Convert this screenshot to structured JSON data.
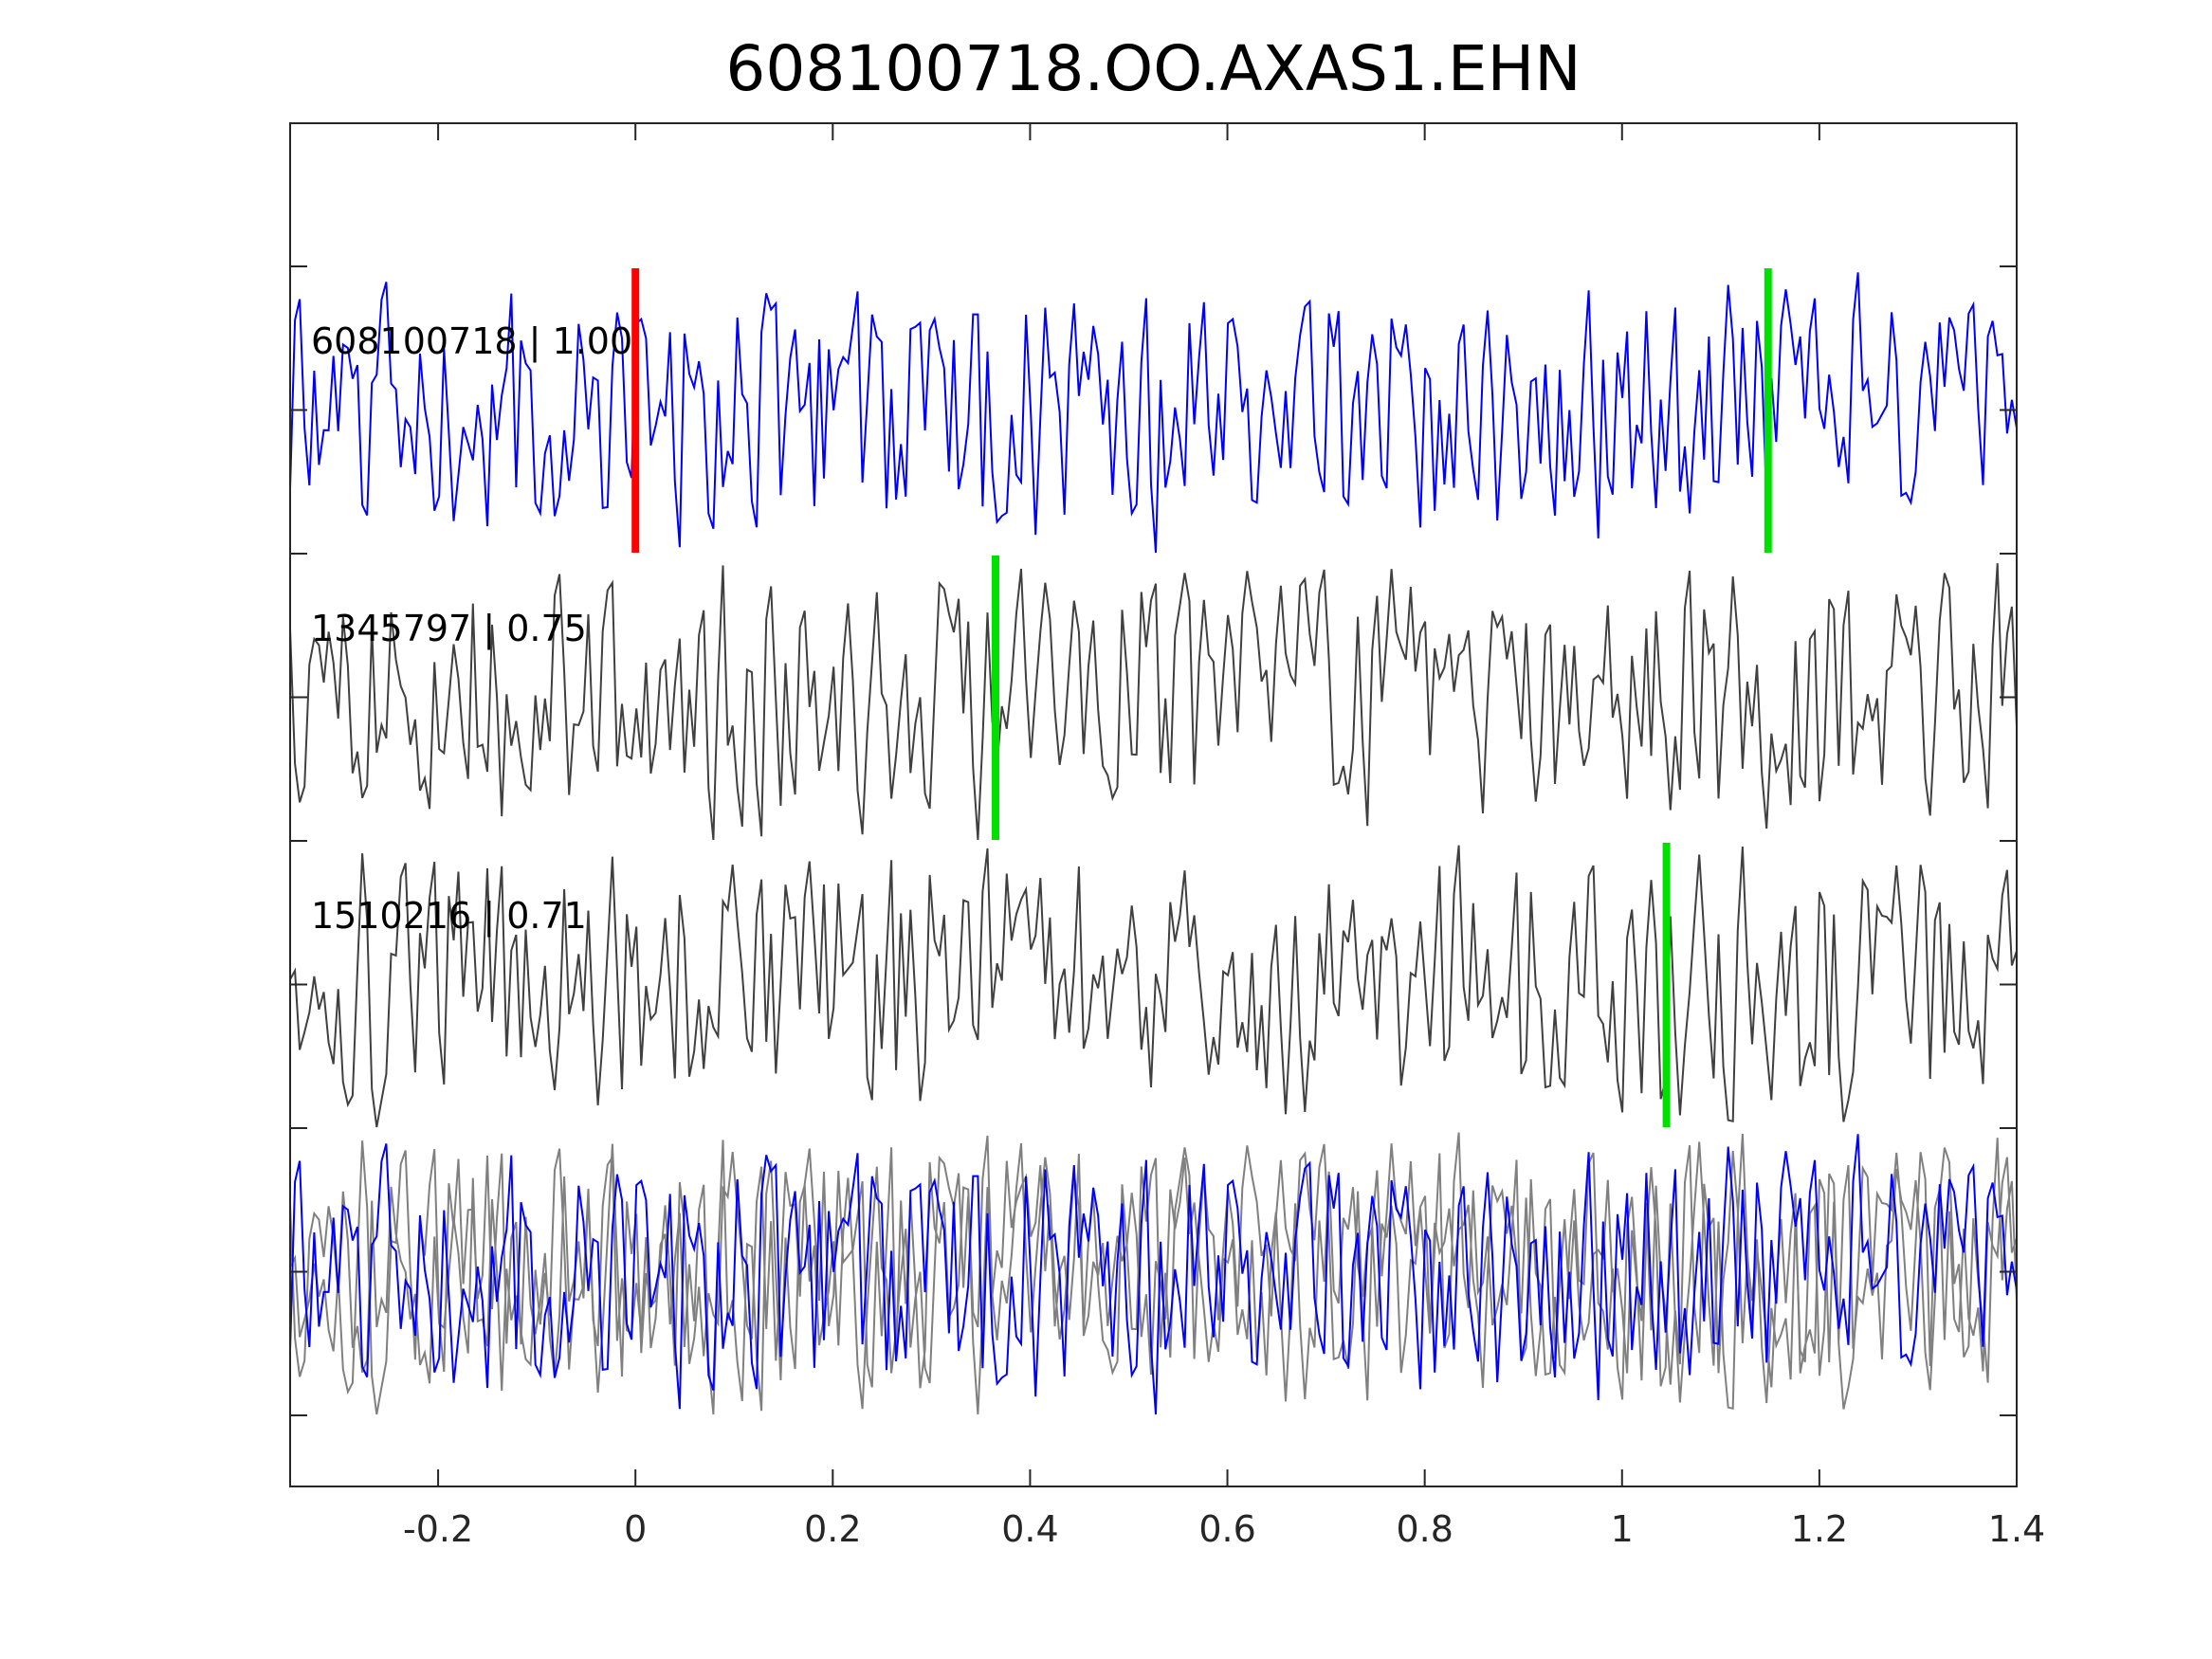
{
  "chart_data": {
    "type": "line",
    "title": "608100718.OO.AXAS1.EHN",
    "xlabel": "",
    "ylabel": "",
    "xlim": [
      -0.35,
      1.4
    ],
    "xticks": [
      -0.2,
      0,
      0.2,
      0.4,
      0.6,
      0.8,
      1,
      1.2,
      1.4
    ],
    "xtick_labels": [
      "-0.2",
      "0",
      "0.2",
      "0.4",
      "0.6",
      "0.8",
      "1",
      "1.2",
      "1.4"
    ],
    "grid": false,
    "traces": [
      {
        "label": "608100718 | 1.00",
        "color": "#0000ff",
        "offset": 0,
        "markers": [
          {
            "t": 0.0,
            "color": "#ff0000"
          },
          {
            "t": 1.148,
            "color": "#00e000"
          }
        ]
      },
      {
        "label": "1345797 | 0.75",
        "color": "#404040",
        "offset": 1,
        "markers": [
          {
            "t": 0.365,
            "color": "#00e000"
          }
        ]
      },
      {
        "label": "1510216 | 0.71",
        "color": "#404040",
        "offset": 2,
        "markers": [
          {
            "t": 1.045,
            "color": "#00e000"
          }
        ]
      }
    ],
    "overlay": {
      "offset": 3,
      "colors": [
        "#808080",
        "#808080",
        "#0000ff"
      ]
    },
    "colors": {
      "highlight": "#0000ff",
      "correlated": "#404040",
      "overlay_gray": "#808080",
      "pick_primary": "#ff0000",
      "pick_secondary": "#00e000"
    }
  }
}
